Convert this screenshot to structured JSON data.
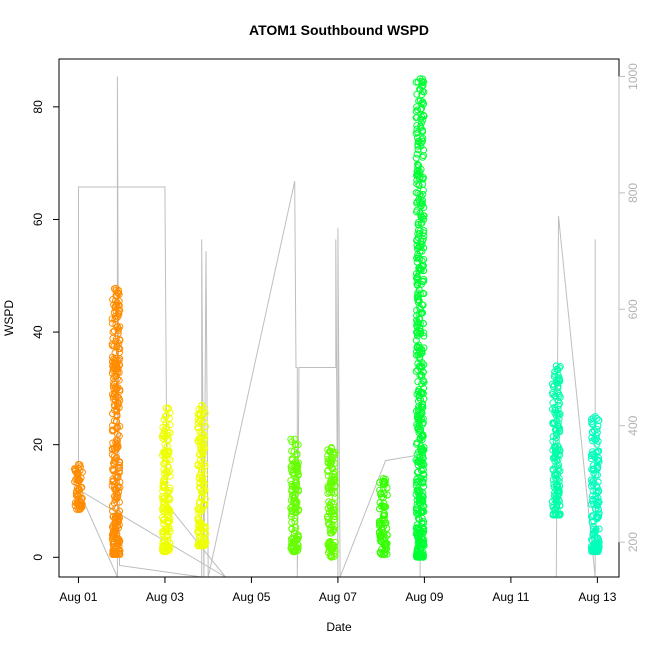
{
  "chart_data": {
    "type": "scatter",
    "title": "ATOM1 Southbound WSPD",
    "xlabel": "Date",
    "ylabel": "WSPD",
    "x_tick_labels": [
      "Aug 01",
      "Aug 03",
      "Aug 05",
      "Aug 07",
      "Aug 09",
      "Aug 11",
      "Aug 13"
    ],
    "x_tick_days": [
      1,
      3,
      5,
      7,
      9,
      11,
      13
    ],
    "xlim_days": [
      0.55,
      13.5
    ],
    "ylim": [
      -3.5,
      88.5
    ],
    "y_ticks": [
      0,
      20,
      40,
      60,
      80
    ],
    "right_axis": {
      "ticks": [
        200,
        400,
        600,
        800,
        1000
      ],
      "range": [
        1030,
        140
      ],
      "color": "#bebebe"
    },
    "grid": false,
    "point_shape": "open-circle",
    "clusters": [
      {
        "day": 1.0,
        "ymin": 8.5,
        "ymax": 16.5,
        "color": "#FF8C00"
      },
      {
        "day": 1.87,
        "ymin": 0.5,
        "ymax": 47.8,
        "color": "#FF8C00"
      },
      {
        "day": 3.03,
        "ymin": 1.0,
        "ymax": 26.5,
        "color": "#EEFF00"
      },
      {
        "day": 3.85,
        "ymin": 2.0,
        "ymax": 27.0,
        "color": "#EEFF00"
      },
      {
        "day": 6.0,
        "ymin": 1.0,
        "ymax": 21.0,
        "color": "#66FF00"
      },
      {
        "day": 6.85,
        "ymin": 0.0,
        "ymax": 19.5,
        "color": "#66FF00"
      },
      {
        "day": 8.05,
        "ymin": 0.5,
        "ymax": 14.0,
        "color": "#33FF00"
      },
      {
        "day": 8.9,
        "ymin": 0.0,
        "ymax": 85.0,
        "color": "#00FF33"
      },
      {
        "day": 12.05,
        "ymin": 7.5,
        "ymax": 34.0,
        "color": "#00FFAA"
      },
      {
        "day": 12.95,
        "ymin": 1.0,
        "ymax": 25.0,
        "color": "#00FFBB"
      }
    ],
    "gray_series": {
      "color": "#bebebe",
      "axis": "right",
      "points": [
        [
          1.0,
          290
        ],
        [
          1.0,
          810
        ],
        [
          3.0,
          810
        ],
        [
          3.05,
          260
        ],
        [
          3.1,
          260
        ],
        [
          4.4,
          140
        ],
        [
          1.0,
          290
        ],
        [
          1.9,
          140
        ],
        [
          1.9,
          1000
        ],
        [
          1.92,
          600
        ],
        [
          1.95,
          160
        ],
        [
          3.85,
          140
        ],
        [
          3.85,
          720
        ],
        [
          3.9,
          140
        ],
        [
          3.95,
          700
        ],
        [
          4.0,
          140
        ],
        [
          6.0,
          820
        ],
        [
          6.03,
          500
        ],
        [
          6.06,
          500
        ],
        [
          6.06,
          140
        ],
        [
          6.1,
          500
        ],
        [
          6.95,
          500
        ],
        [
          6.95,
          720
        ],
        [
          7.0,
          140
        ],
        [
          7.0,
          740
        ],
        [
          7.05,
          140
        ],
        [
          8.05,
          330
        ],
        [
          8.1,
          340
        ],
        [
          8.9,
          350
        ],
        [
          8.9,
          140
        ],
        [
          8.95,
          140
        ],
        [
          12.05,
          140
        ],
        [
          12.1,
          760
        ],
        [
          12.95,
          140
        ],
        [
          12.95,
          720
        ]
      ]
    }
  }
}
